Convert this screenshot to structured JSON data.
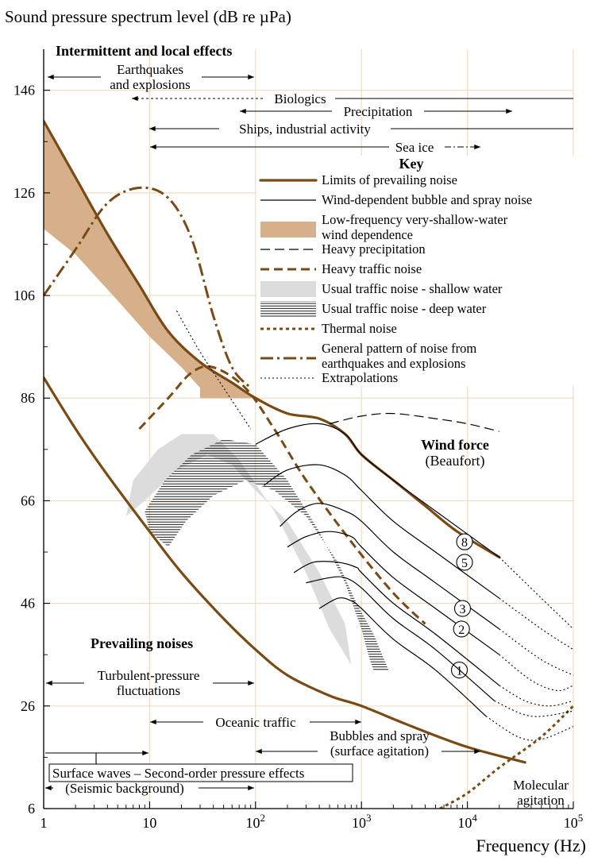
{
  "chart_data": {
    "type": "line",
    "title": "",
    "ylabel": "Sound pressure spectrum level (dB re µPa)",
    "xlabel": "Frequency (Hz)",
    "x_scale": "log",
    "xlim": [
      1,
      100000
    ],
    "ylim": [
      6,
      154
    ],
    "x_ticks": [
      {
        "value": 1,
        "label": "1",
        "sup": ""
      },
      {
        "value": 10,
        "label": "10",
        "sup": ""
      },
      {
        "value": 100,
        "label": "10",
        "sup": "2"
      },
      {
        "value": 1000,
        "label": "10",
        "sup": "3"
      },
      {
        "value": 10000,
        "label": "10",
        "sup": "4"
      },
      {
        "value": 100000,
        "label": "10",
        "sup": "5"
      }
    ],
    "y_ticks": [
      6,
      26,
      46,
      66,
      86,
      106,
      126,
      146
    ],
    "grid": true,
    "colors": {
      "brown": "#7b4a14",
      "band": "#d5b08a",
      "gray": "#dcdcdc",
      "grid": "#f0ddc0"
    },
    "legend": {
      "title": "Key",
      "placement": "upper-right",
      "entries": [
        {
          "label": "Limits of prevailing noise",
          "style": "thick-brown"
        },
        {
          "label": "Wind-dependent bubble and spray noise",
          "style": "thin-black"
        },
        {
          "label": "Low-frequency very-shallow-water wind dependence",
          "lines": [
            "Low-frequency very-shallow-water",
            "wind dependence"
          ],
          "style": "tan-band"
        },
        {
          "label": "Heavy precipitation",
          "style": "dashed-black"
        },
        {
          "label": "Heavy traffic noise",
          "style": "dashed-brown"
        },
        {
          "label": "Usual traffic noise - shallow water",
          "style": "gray-band"
        },
        {
          "label": "Usual traffic noise - deep water",
          "style": "hatched"
        },
        {
          "label": "Thermal noise",
          "style": "dotted-brown"
        },
        {
          "label": "General pattern of noise from earthquakes and explosions",
          "lines": [
            "General pattern of noise from",
            "earthquakes and explosions"
          ],
          "style": "dashdot-brown"
        },
        {
          "label": "Extrapolations",
          "style": "dotted-black"
        }
      ]
    },
    "series": [
      {
        "name": "Limits of prevailing noise",
        "style": "thick-brown",
        "points": [
          [
            1,
            140
          ],
          [
            2,
            129
          ],
          [
            4,
            118
          ],
          [
            8,
            108
          ],
          [
            15,
            99
          ],
          [
            30,
            93
          ],
          [
            60,
            89
          ],
          [
            100,
            86
          ],
          [
            200,
            83
          ],
          [
            400,
            82
          ],
          [
            700,
            79
          ],
          [
            1000,
            75
          ],
          [
            2000,
            70
          ],
          [
            4000,
            65
          ],
          [
            8000,
            60
          ],
          [
            20000,
            55
          ]
        ]
      },
      {
        "name": "Limits of prevailing noise",
        "style": "thick-brown",
        "points": [
          [
            1,
            90
          ],
          [
            2,
            80
          ],
          [
            4,
            71
          ],
          [
            10,
            60
          ],
          [
            20,
            52
          ],
          [
            50,
            43
          ],
          [
            100,
            37
          ],
          [
            200,
            32
          ],
          [
            500,
            28
          ],
          [
            1000,
            26
          ],
          [
            3000,
            22
          ],
          [
            10000,
            18
          ],
          [
            35000,
            15
          ]
        ]
      },
      {
        "name": "Heavy precipitation",
        "style": "dashed-black",
        "points": [
          [
            500,
            81
          ],
          [
            1000,
            82.5
          ],
          [
            2000,
            83
          ],
          [
            5000,
            82
          ],
          [
            10000,
            81
          ],
          [
            20000,
            79.5
          ]
        ]
      },
      {
        "name": "Heavy traffic noise",
        "style": "dashed-brown",
        "points": [
          [
            8,
            80
          ],
          [
            15,
            86
          ],
          [
            25,
            91
          ],
          [
            40,
            92
          ],
          [
            80,
            88
          ],
          [
            150,
            80
          ],
          [
            300,
            70
          ],
          [
            800,
            58
          ],
          [
            2000,
            48
          ],
          [
            4000,
            42
          ]
        ]
      },
      {
        "name": "General pattern of noise from earthquakes and explosions",
        "style": "dashdot-brown",
        "points": [
          [
            1,
            106
          ],
          [
            2,
            115
          ],
          [
            4,
            124
          ],
          [
            8,
            127
          ],
          [
            15,
            125
          ],
          [
            25,
            117
          ],
          [
            40,
            102
          ],
          [
            60,
            92
          ],
          [
            90,
            88
          ]
        ]
      },
      {
        "name": "Thermal noise",
        "style": "dotted-brown",
        "points": [
          [
            5500,
            6
          ],
          [
            10000,
            9
          ],
          [
            20000,
            14
          ],
          [
            50000,
            20
          ],
          [
            100000,
            26
          ]
        ]
      },
      {
        "name": "Extrapolations",
        "style": "dotted-black",
        "points": [
          [
            18,
            103
          ],
          [
            30,
            95
          ],
          [
            50,
            88
          ],
          [
            90,
            80
          ]
        ]
      }
    ],
    "bands": [
      {
        "name": "Low-frequency very-shallow-water wind dependence",
        "style": "tan-band",
        "upper": [
          [
            1,
            140
          ],
          [
            2,
            129
          ],
          [
            4,
            118
          ],
          [
            8,
            108
          ],
          [
            15,
            99
          ],
          [
            30,
            93
          ],
          [
            60,
            89
          ],
          [
            100,
            86
          ]
        ],
        "lower": [
          [
            1,
            119
          ],
          [
            2,
            114
          ],
          [
            5,
            105
          ],
          [
            10,
            98
          ],
          [
            20,
            92
          ],
          [
            30,
            88
          ],
          [
            30,
            86
          ],
          [
            100,
            86
          ]
        ]
      },
      {
        "name": "Usual traffic noise - shallow water",
        "style": "gray-band",
        "points": [
          [
            7,
            70
          ],
          [
            12,
            76
          ],
          [
            20,
            79
          ],
          [
            40,
            79
          ],
          [
            70,
            74
          ],
          [
            150,
            64
          ],
          [
            300,
            52
          ],
          [
            500,
            41
          ],
          [
            800,
            34
          ],
          [
            700,
            42
          ],
          [
            400,
            52
          ],
          [
            200,
            62
          ],
          [
            100,
            68
          ],
          [
            60,
            73
          ],
          [
            35,
            75
          ],
          [
            18,
            72
          ],
          [
            9,
            66
          ],
          [
            6,
            63
          ]
        ]
      },
      {
        "name": "Usual traffic noise - deep water",
        "style": "hatched",
        "points": [
          [
            9,
            64
          ],
          [
            14,
            70
          ],
          [
            25,
            75
          ],
          [
            50,
            78
          ],
          [
            100,
            77
          ],
          [
            200,
            70
          ],
          [
            400,
            60
          ],
          [
            700,
            50
          ],
          [
            1000,
            41
          ],
          [
            1200,
            35
          ],
          [
            1300,
            33
          ],
          [
            1800,
            33
          ],
          [
            1300,
            40
          ],
          [
            900,
            46
          ],
          [
            600,
            54
          ],
          [
            300,
            63
          ],
          [
            150,
            68
          ],
          [
            80,
            70
          ],
          [
            40,
            67
          ],
          [
            22,
            62
          ],
          [
            15,
            57
          ],
          [
            10,
            60
          ]
        ]
      }
    ],
    "wind_curves": {
      "name": "Wind-dependent bubble and spray noise",
      "title": "Wind force",
      "subtitle": "(Beaufort)",
      "curves": [
        {
          "label": "8",
          "points": [
            [
              100,
              77
            ],
            [
              200,
              80
            ],
            [
              400,
              81
            ],
            [
              700,
              79
            ],
            [
              1000,
              75
            ],
            [
              2000,
              70
            ],
            [
              5000,
              64
            ],
            [
              20000,
              55
            ]
          ],
          "extrap": [
            [
              20000,
              55
            ],
            [
              50000,
              47
            ],
            [
              100000,
              41
            ]
          ],
          "label_at": [
            9400,
            58
          ]
        },
        {
          "label": "5",
          "points": [
            [
              120,
              69
            ],
            [
              200,
              72
            ],
            [
              400,
              73
            ],
            [
              700,
              71
            ],
            [
              1000,
              68
            ],
            [
              2000,
              62
            ],
            [
              5000,
              56
            ],
            [
              20000,
              47
            ]
          ],
          "extrap": [
            [
              20000,
              47
            ],
            [
              50000,
              41
            ],
            [
              100000,
              37
            ]
          ],
          "label_at": [
            9400,
            54
          ]
        },
        {
          "label": "3",
          "points": [
            [
              170,
              61
            ],
            [
              250,
              64
            ],
            [
              400,
              65.5
            ],
            [
              700,
              64
            ],
            [
              1000,
              62
            ],
            [
              2000,
              56
            ],
            [
              5000,
              50
            ],
            [
              20000,
              41
            ]
          ],
          "extrap": [
            [
              20000,
              41
            ],
            [
              50000,
              35
            ],
            [
              100000,
              32
            ]
          ],
          "label_at": [
            9000,
            45
          ]
        },
        {
          "label": "2",
          "points": [
            [
              200,
              57
            ],
            [
              300,
              59
            ],
            [
              500,
              60
            ],
            [
              800,
              59
            ],
            [
              1000,
              57
            ],
            [
              2000,
              51
            ],
            [
              5000,
              45
            ],
            [
              20000,
              36
            ]
          ],
          "extrap": [
            [
              20000,
              36
            ],
            [
              40000,
              31
            ],
            [
              70000,
              29
            ],
            [
              100000,
              30
            ]
          ],
          "label_at": [
            8800,
            41
          ]
        },
        {
          "label": "1",
          "points": [
            [
              230,
              52
            ],
            [
              350,
              54
            ],
            [
              600,
              54
            ],
            [
              900,
              53
            ],
            [
              1000,
              52
            ],
            [
              2000,
              46
            ],
            [
              5000,
              40
            ],
            [
              20000,
              30
            ]
          ],
          "extrap": [
            [
              20000,
              30
            ],
            [
              35000,
              27
            ],
            [
              60000,
              26
            ],
            [
              100000,
              27
            ]
          ],
          "label_at": [
            8400,
            33
          ]
        },
        {
          "label": "",
          "points": [
            [
              400,
              45
            ],
            [
              600,
              47
            ],
            [
              800,
              46.5
            ],
            [
              1000,
              45
            ],
            [
              2000,
              39
            ],
            [
              5000,
              33
            ],
            [
              15000,
              24
            ]
          ],
          "extrap": [
            [
              15000,
              24
            ],
            [
              30000,
              20
            ],
            [
              50000,
              19.5
            ],
            [
              100000,
              22
            ]
          ],
          "label_at": null
        },
        {
          "label": "",
          "points": [
            [
              300,
              50
            ],
            [
              500,
              51
            ],
            [
              700,
              51
            ],
            [
              1000,
              49
            ],
            [
              2000,
              43
            ],
            [
              5000,
              37
            ],
            [
              18000,
              27
            ]
          ],
          "extrap": [
            [
              18000,
              27
            ],
            [
              40000,
              24
            ],
            [
              100000,
              25
            ]
          ],
          "label_at": null
        }
      ]
    },
    "annotations": {
      "intermittent": "Intermittent and local effects",
      "earthquakes": [
        "Earthquakes",
        "and explosions"
      ],
      "biologics": "Biologics",
      "precipitation": "Precipitation",
      "ships": "Ships, industrial activity",
      "seaice": "Sea ice",
      "prevailing": "Prevailing noises",
      "turbulent": [
        "Turbulent-pressure",
        "fluctuations"
      ],
      "oceanic": "Oceanic traffic",
      "bubbles": [
        "Bubbles and spray",
        "(surface agitation)"
      ],
      "surface_waves": "Surface waves – Second-order pressure effects",
      "seismic": "(Seismic background)",
      "molecular": [
        "Molecular",
        "agitation"
      ]
    }
  }
}
